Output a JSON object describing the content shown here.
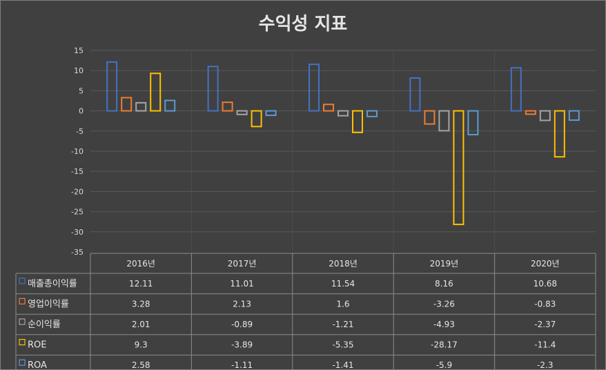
{
  "chart_data": {
    "type": "bar",
    "title": "수익성 지표",
    "categories": [
      "2016년",
      "2017년",
      "2018년",
      "2019년",
      "2020년"
    ],
    "ylim": [
      -35,
      15
    ],
    "yticks": [
      15,
      10,
      5,
      0,
      -5,
      -10,
      -15,
      -20,
      -25,
      -30,
      -35
    ],
    "grid": true,
    "legend": "bottom-data-table",
    "series": [
      {
        "name": "매출총이익률",
        "color": "#4472c4",
        "values": [
          12.11,
          11.01,
          11.54,
          8.16,
          10.68
        ],
        "labels": [
          "12.11",
          "11.01",
          "11.54",
          "8.16",
          "10.68"
        ]
      },
      {
        "name": "영업이익률",
        "color": "#ed7d31",
        "values": [
          3.28,
          2.13,
          1.6,
          -3.26,
          -0.83
        ],
        "labels": [
          "3.28",
          "2.13",
          "1.6",
          "-3.26",
          "-0.83"
        ]
      },
      {
        "name": "순이익률",
        "color": "#a5a5a5",
        "values": [
          2.01,
          -0.89,
          -1.21,
          -4.93,
          -2.37
        ],
        "labels": [
          "2.01",
          "-0.89",
          "-1.21",
          "-4.93",
          "-2.37"
        ]
      },
      {
        "name": "ROE",
        "color": "#ffc000",
        "values": [
          9.3,
          -3.89,
          -5.35,
          -28.17,
          -11.4
        ],
        "labels": [
          "9.3",
          "-3.89",
          "-5.35",
          "-28.17",
          "-11.4"
        ]
      },
      {
        "name": "ROA",
        "color": "#5b9bd5",
        "values": [
          2.58,
          -1.11,
          -1.41,
          -5.9,
          -2.3
        ],
        "labels": [
          "2.58",
          "-1.11",
          "-1.41",
          "-5.9",
          "-2.3"
        ]
      }
    ]
  }
}
